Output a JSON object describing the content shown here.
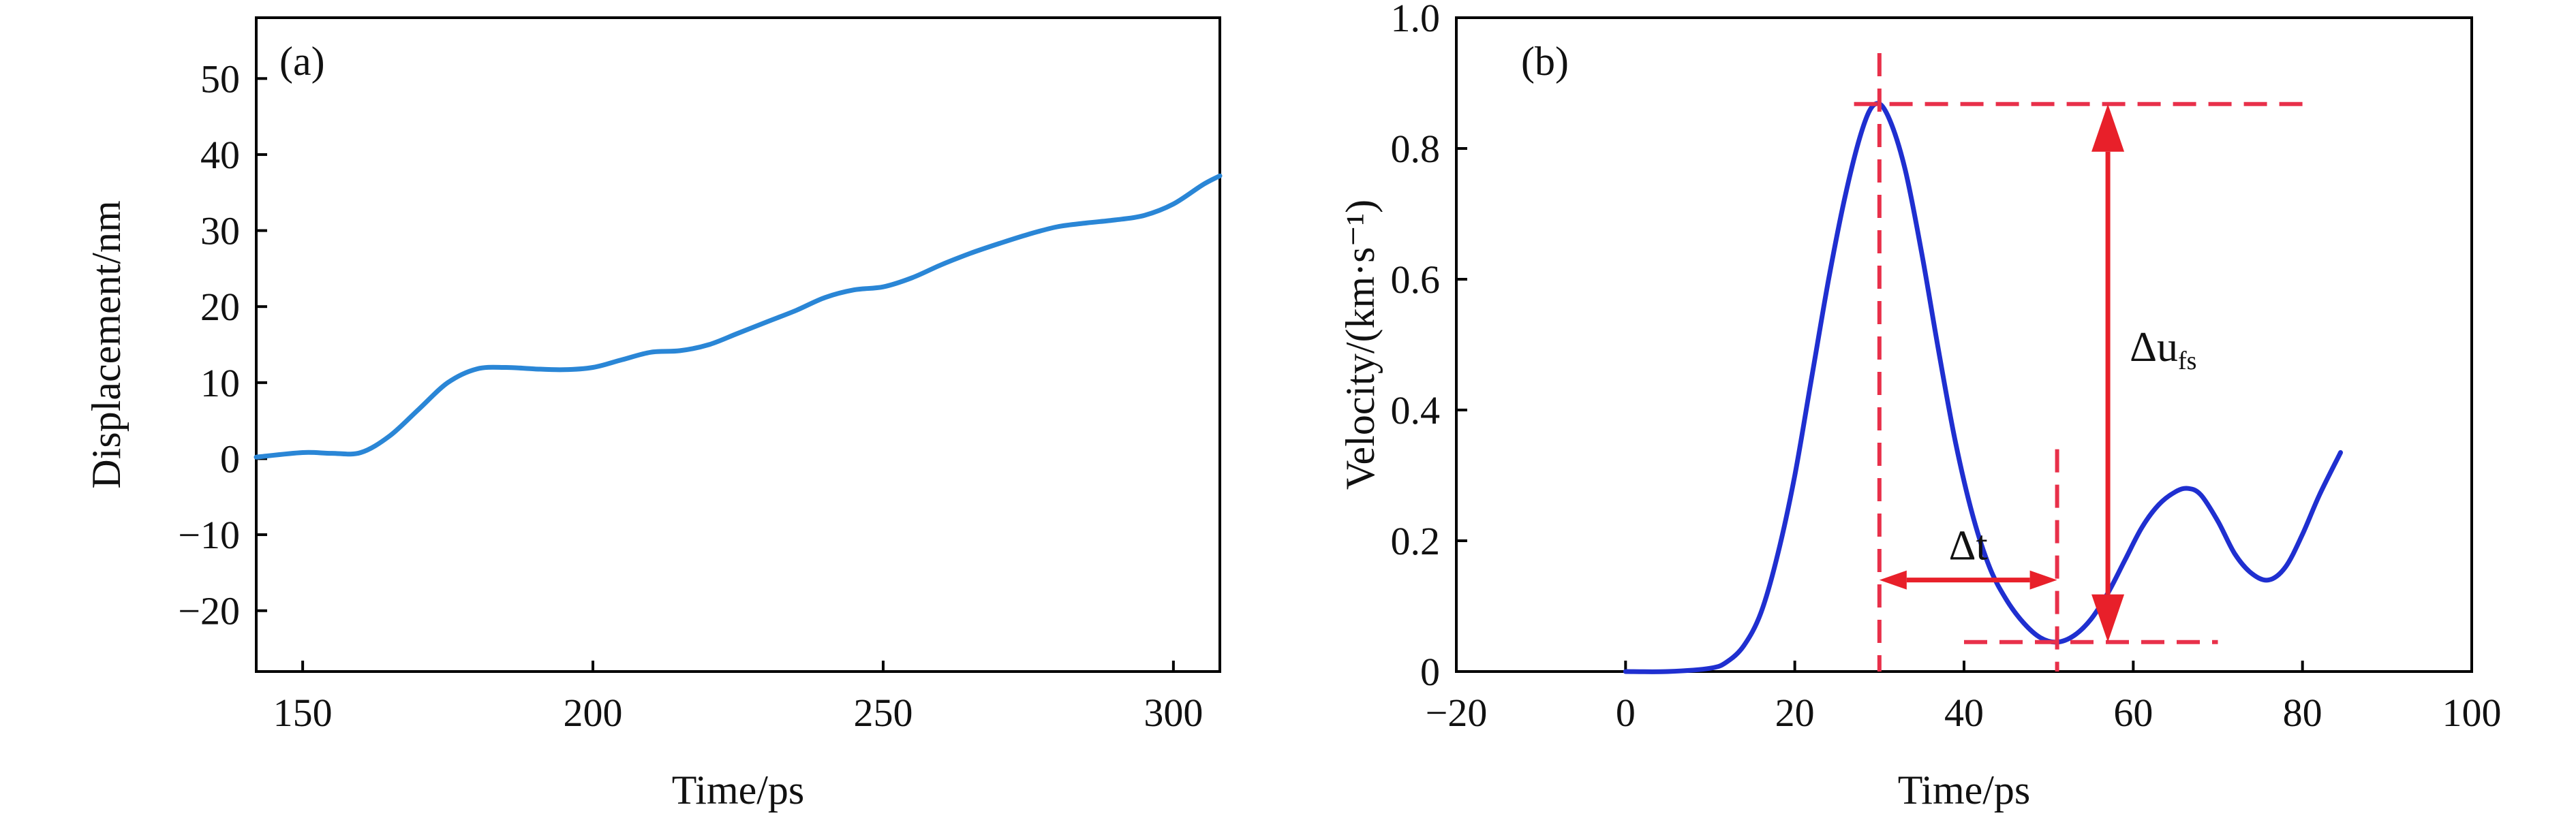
{
  "colors": {
    "series_a": "#2a86d6",
    "series_b": "#1f2fd0",
    "annotation_red": "#e8202a",
    "dash_red": "#e8304a"
  },
  "chart_data": [
    {
      "type": "line",
      "panel_label": "(a)",
      "xlabel": "Time/ps",
      "ylabel": "Displacement/nm",
      "xlim": [
        142,
        308
      ],
      "ylim": [
        -28,
        58
      ],
      "xticks": [
        150,
        200,
        250,
        300
      ],
      "yticks": [
        -20,
        -10,
        0,
        10,
        20,
        30,
        40,
        50
      ],
      "grid": false,
      "series": [
        {
          "x": [
            142,
            150,
            155,
            160,
            165,
            170,
            175,
            180,
            185,
            190,
            195,
            200,
            205,
            210,
            215,
            220,
            225,
            230,
            235,
            240,
            245,
            250,
            255,
            260,
            265,
            270,
            275,
            280,
            285,
            290,
            295,
            300,
            305,
            308
          ],
          "y": [
            0.2,
            0.8,
            0.7,
            0.8,
            3.0,
            6.5,
            10.0,
            11.8,
            12.0,
            11.8,
            11.7,
            12.0,
            13.0,
            14.0,
            14.2,
            15.0,
            16.5,
            18.0,
            19.5,
            21.2,
            22.2,
            22.6,
            23.8,
            25.5,
            27.0,
            28.3,
            29.5,
            30.5,
            31.0,
            31.4,
            32.0,
            33.5,
            36.0,
            37.2
          ]
        }
      ]
    },
    {
      "type": "line",
      "panel_label": "(b)",
      "xlabel": "Time/ps",
      "ylabel": "Velocity/(km·s⁻¹)",
      "xlim": [
        -20,
        100
      ],
      "ylim": [
        0,
        1.0
      ],
      "xticks": [
        -20,
        0,
        20,
        40,
        60,
        80,
        100
      ],
      "yticks": [
        0,
        0.2,
        0.4,
        0.6,
        0.8,
        1.0
      ],
      "grid": false,
      "series": [
        {
          "x": [
            0,
            5,
            10,
            12,
            14,
            16,
            18,
            20,
            22,
            24,
            26,
            28,
            29.5,
            31,
            33,
            35,
            37,
            39,
            41,
            43,
            45,
            47,
            49,
            51,
            53,
            55,
            57,
            59,
            61,
            63,
            65,
            66.5,
            68,
            70,
            72,
            74,
            76,
            78,
            80,
            82,
            84.5
          ],
          "y": [
            0.0,
            0.0,
            0.005,
            0.015,
            0.04,
            0.09,
            0.18,
            0.3,
            0.45,
            0.6,
            0.73,
            0.83,
            0.868,
            0.85,
            0.77,
            0.64,
            0.49,
            0.35,
            0.24,
            0.16,
            0.11,
            0.075,
            0.052,
            0.045,
            0.055,
            0.08,
            0.12,
            0.17,
            0.22,
            0.255,
            0.275,
            0.28,
            0.27,
            0.23,
            0.18,
            0.15,
            0.14,
            0.16,
            0.21,
            0.27,
            0.335
          ]
        }
      ],
      "annotations": [
        {
          "label": "Δu",
          "subscript": "fs",
          "from": [
            57,
            0.868
          ],
          "to": [
            57,
            0.045
          ]
        },
        {
          "label": "Δt",
          "from": [
            30,
            0.14
          ],
          "to": [
            51,
            0.14
          ]
        }
      ]
    }
  ]
}
